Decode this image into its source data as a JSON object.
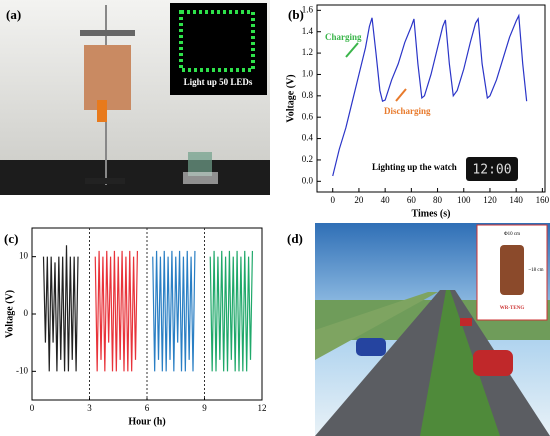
{
  "panels": {
    "a": {
      "label": "(a)",
      "caption": "Light up 50 LEDs"
    },
    "b": {
      "label": "(b)"
    },
    "c": {
      "label": "(c)"
    },
    "d": {
      "label": "(d)",
      "diameter": "Φ10 cm",
      "height": "~18 cm",
      "device": "WR-TENG"
    }
  },
  "chart_data": [
    {
      "type": "line",
      "xlabel": "Times (s)",
      "ylabel": "Voltage (V)",
      "annotations": {
        "charging": "Charging",
        "discharging": "Discharging",
        "watch": "Lighting up the watch",
        "watch_display": "12:00"
      },
      "xlim": [
        -12,
        162
      ],
      "ylim": [
        -0.1,
        1.65
      ],
      "xticks": [
        0,
        20,
        40,
        60,
        80,
        100,
        120,
        140,
        160
      ],
      "yticks": [
        {
          "value": 0,
          "label": "0.0"
        },
        0.2,
        0.4,
        0.6,
        0.8,
        {
          "value": 1,
          "label": "1.0"
        },
        1.2,
        1.4,
        1.6
      ],
      "x": [
        0,
        5,
        10,
        15,
        20,
        25,
        28,
        30,
        33,
        36,
        38,
        40,
        45,
        50,
        55,
        60,
        62,
        65,
        68,
        70,
        75,
        80,
        84,
        86,
        89,
        92,
        95,
        100,
        105,
        109,
        111,
        114,
        118,
        120,
        125,
        130,
        135,
        140,
        142,
        145,
        148
      ],
      "series": [
        {
          "color": "#2b35c8",
          "values": [
            0.05,
            0.3,
            0.5,
            0.75,
            1.0,
            1.25,
            1.45,
            1.53,
            1.2,
            0.85,
            0.75,
            0.76,
            0.95,
            1.1,
            1.3,
            1.45,
            1.52,
            1.1,
            0.78,
            0.8,
            1.0,
            1.25,
            1.45,
            1.51,
            1.1,
            0.8,
            0.85,
            1.05,
            1.3,
            1.48,
            1.52,
            1.1,
            0.78,
            0.8,
            0.95,
            1.15,
            1.35,
            1.5,
            1.55,
            1.1,
            0.75
          ]
        }
      ]
    },
    {
      "type": "line",
      "xlabel": "Hour (h)",
      "ylabel": "Voltage (V)",
      "xlim": [
        0,
        12
      ],
      "ylim": [
        -15,
        15
      ],
      "xticks": [
        0,
        3,
        6,
        9,
        12
      ],
      "yticks": [
        -10,
        0,
        10
      ],
      "vlines": [
        3,
        6,
        9
      ],
      "series": [
        {
          "color": "#222222",
          "x": [
            0.6,
            0.7,
            0.8,
            0.9,
            1.0,
            1.1,
            1.2,
            1.3,
            1.4,
            1.5,
            1.6,
            1.7,
            1.8,
            1.9,
            2.0,
            2.1,
            2.2,
            2.3,
            2.4
          ],
          "values": [
            10,
            -5,
            10,
            -10,
            10,
            -5,
            9,
            -10,
            10,
            -8,
            10,
            -10,
            12,
            -10,
            10,
            -8,
            10,
            -10,
            10
          ]
        },
        {
          "color": "#e8333a",
          "x": [
            3.3,
            3.4,
            3.5,
            3.6,
            3.7,
            3.8,
            3.9,
            4.0,
            4.1,
            4.2,
            4.3,
            4.4,
            4.5,
            4.6,
            4.7,
            4.8,
            4.9,
            5.0,
            5.1,
            5.2,
            5.3,
            5.4,
            5.5
          ],
          "values": [
            10,
            -10,
            11,
            -8,
            10,
            -10,
            11,
            -5,
            10,
            -10,
            11,
            -10,
            10,
            -8,
            11,
            -10,
            10,
            -10,
            11,
            -10,
            10,
            -8,
            11
          ]
        },
        {
          "color": "#2a7fc4",
          "x": [
            6.3,
            6.4,
            6.5,
            6.6,
            6.7,
            6.8,
            6.9,
            7.0,
            7.1,
            7.2,
            7.3,
            7.4,
            7.5,
            7.6,
            7.7,
            7.8,
            7.9,
            8.0,
            8.1,
            8.2,
            8.3,
            8.4,
            8.5
          ],
          "values": [
            10,
            -10,
            11,
            -8,
            10,
            -10,
            11,
            -10,
            10,
            -8,
            11,
            -10,
            10,
            -5,
            11,
            -10,
            10,
            -10,
            11,
            -8,
            10,
            -10,
            11
          ]
        },
        {
          "color": "#1fa86a",
          "x": [
            9.3,
            9.4,
            9.5,
            9.6,
            9.7,
            9.8,
            9.9,
            10.0,
            10.1,
            10.2,
            10.3,
            10.4,
            10.5,
            10.6,
            10.7,
            10.8,
            10.9,
            11.0,
            11.1,
            11.2,
            11.3,
            11.4,
            11.5
          ],
          "values": [
            10,
            -10,
            11,
            -10,
            10,
            -8,
            11,
            -10,
            10,
            -10,
            11,
            -8,
            10,
            -10,
            11,
            -10,
            10,
            -10,
            11,
            -10,
            10,
            -8,
            11
          ]
        }
      ]
    }
  ]
}
